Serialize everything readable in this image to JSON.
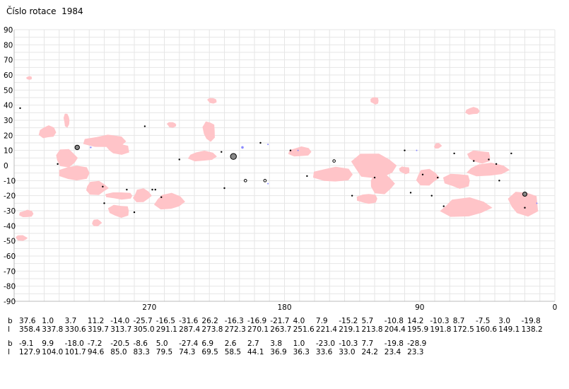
{
  "title": "Číslo rotace  1984",
  "chart_data": {
    "type": "scatter",
    "ylim": [
      -90,
      90
    ],
    "xlim": [
      360,
      0
    ],
    "y_ticks": [
      "90",
      "80",
      "70",
      "60",
      "50",
      "40",
      "30",
      "20",
      "10",
      "0",
      "-10",
      "-20",
      "-30",
      "-40",
      "-50",
      "-60",
      "-70",
      "-80",
      "-90"
    ],
    "x_ticks": [
      {
        "value": 270,
        "label": "270"
      },
      {
        "value": 180,
        "label": "180"
      },
      {
        "value": 90,
        "label": "90"
      },
      {
        "value": 0,
        "label": "0"
      }
    ],
    "grid": true,
    "colors": {
      "region": "#ffc4c8",
      "spot": "#000000",
      "spot_fill": "#888888",
      "small": "#8a8aff",
      "grid": "#e6e6e6"
    },
    "regions": [
      {
        "l": 290,
        "b": 11,
        "w": 19,
        "h": 8
      },
      {
        "l": 338,
        "b": 22,
        "w": 12,
        "h": 10
      },
      {
        "l": 325,
        "b": 30,
        "w": 5,
        "h": 10
      },
      {
        "l": 300,
        "b": 16,
        "w": 30,
        "h": 10
      },
      {
        "l": 325,
        "b": 5,
        "w": 18,
        "h": 13
      },
      {
        "l": 320,
        "b": -5,
        "w": 22,
        "h": 12
      },
      {
        "l": 305,
        "b": -15,
        "w": 18,
        "h": 10
      },
      {
        "l": 290,
        "b": -20,
        "w": 20,
        "h": 6
      },
      {
        "l": 275,
        "b": -20,
        "w": 14,
        "h": 10
      },
      {
        "l": 290,
        "b": -30,
        "w": 16,
        "h": 10
      },
      {
        "l": 257,
        "b": -24,
        "w": 22,
        "h": 12
      },
      {
        "l": 230,
        "b": 23,
        "w": 10,
        "h": 15
      },
      {
        "l": 235,
        "b": 6,
        "w": 20,
        "h": 8
      },
      {
        "l": 228,
        "b": 43,
        "w": 8,
        "h": 4
      },
      {
        "l": 170,
        "b": 9,
        "w": 16,
        "h": 8
      },
      {
        "l": 120,
        "b": 0,
        "w": 38,
        "h": 18
      },
      {
        "l": 148,
        "b": -6,
        "w": 28,
        "h": 12
      },
      {
        "l": 115,
        "b": -12,
        "w": 20,
        "h": 15
      },
      {
        "l": 125,
        "b": -22,
        "w": 15,
        "h": 8
      },
      {
        "l": 85,
        "b": -8,
        "w": 18,
        "h": 12
      },
      {
        "l": 65,
        "b": -10,
        "w": 20,
        "h": 12
      },
      {
        "l": 60,
        "b": -28,
        "w": 38,
        "h": 14
      },
      {
        "l": 50,
        "b": 6,
        "w": 18,
        "h": 10
      },
      {
        "l": 45,
        "b": -3,
        "w": 30,
        "h": 10
      },
      {
        "l": 20,
        "b": -25,
        "w": 25,
        "h": 18
      },
      {
        "l": 55,
        "b": 36,
        "w": 10,
        "h": 6
      },
      {
        "l": 255,
        "b": 27,
        "w": 8,
        "h": 4
      },
      {
        "l": 352,
        "b": -32,
        "w": 10,
        "h": 6
      },
      {
        "l": 355,
        "b": -48,
        "w": 10,
        "h": 4
      },
      {
        "l": 350,
        "b": 58,
        "w": 4,
        "h": 3
      },
      {
        "l": 305,
        "b": -38,
        "w": 8,
        "h": 5
      },
      {
        "l": 120,
        "b": 43,
        "w": 6,
        "h": 6
      },
      {
        "l": 78,
        "b": 13,
        "w": 6,
        "h": 4
      },
      {
        "l": 100,
        "b": -3,
        "w": 8,
        "h": 6
      }
    ],
    "spots": [
      {
        "l": 356,
        "b": 38,
        "r": 1.2,
        "kind": "dot"
      },
      {
        "l": 331,
        "b": 1,
        "r": 1.2,
        "kind": "dot"
      },
      {
        "l": 318,
        "b": 12,
        "r": 3.2,
        "kind": "ring"
      },
      {
        "l": 309,
        "b": 12,
        "r": 1.2,
        "kind": "blue"
      },
      {
        "l": 301,
        "b": -14,
        "r": 1.2,
        "kind": "dot"
      },
      {
        "l": 300,
        "b": -25,
        "r": 1.2,
        "kind": "dot"
      },
      {
        "l": 285,
        "b": -16,
        "r": 1.2,
        "kind": "dot"
      },
      {
        "l": 280,
        "b": -31,
        "r": 1.2,
        "kind": "dot"
      },
      {
        "l": 273,
        "b": 26,
        "r": 1.2,
        "kind": "dot"
      },
      {
        "l": 268,
        "b": -16,
        "r": 1.2,
        "kind": "dot"
      },
      {
        "l": 266,
        "b": -16,
        "r": 1.2,
        "kind": "dot"
      },
      {
        "l": 262,
        "b": -21,
        "r": 1.2,
        "kind": "dot"
      },
      {
        "l": 250,
        "b": 4,
        "r": 1.2,
        "kind": "dot"
      },
      {
        "l": 222,
        "b": 9,
        "r": 1.2,
        "kind": "dot"
      },
      {
        "l": 220,
        "b": -15,
        "r": 1.2,
        "kind": "dot"
      },
      {
        "l": 214,
        "b": 6,
        "r": 4.2,
        "kind": "ring"
      },
      {
        "l": 208,
        "b": 12,
        "r": 1.8,
        "kind": "blue"
      },
      {
        "l": 206,
        "b": -10,
        "r": 1.8,
        "kind": "ringsmall"
      },
      {
        "l": 196,
        "b": 15,
        "r": 1.2,
        "kind": "dot"
      },
      {
        "l": 193,
        "b": -10,
        "r": 1.8,
        "kind": "ringsmall"
      },
      {
        "l": 191,
        "b": 14,
        "r": 1.0,
        "kind": "blue"
      },
      {
        "l": 191,
        "b": -12,
        "r": 1.0,
        "kind": "blue"
      },
      {
        "l": 176,
        "b": 10,
        "r": 1.2,
        "kind": "dot"
      },
      {
        "l": 171,
        "b": 10,
        "r": 1.0,
        "kind": "blue"
      },
      {
        "l": 165,
        "b": -7,
        "r": 1.2,
        "kind": "dot"
      },
      {
        "l": 147,
        "b": 3,
        "r": 1.8,
        "kind": "ringsmall"
      },
      {
        "l": 135,
        "b": -20,
        "r": 1.2,
        "kind": "dot"
      },
      {
        "l": 120,
        "b": -8,
        "r": 1.2,
        "kind": "dot"
      },
      {
        "l": 100,
        "b": 10,
        "r": 1.2,
        "kind": "dot"
      },
      {
        "l": 96,
        "b": -18,
        "r": 1.2,
        "kind": "dot"
      },
      {
        "l": 92,
        "b": 10,
        "r": 1.0,
        "kind": "blue"
      },
      {
        "l": 88,
        "b": -6,
        "r": 1.2,
        "kind": "dot"
      },
      {
        "l": 82,
        "b": -20,
        "r": 1.2,
        "kind": "dot"
      },
      {
        "l": 78,
        "b": -8,
        "r": 1.2,
        "kind": "dot"
      },
      {
        "l": 74,
        "b": -27,
        "r": 1.2,
        "kind": "dot"
      },
      {
        "l": 67,
        "b": 8,
        "r": 1.2,
        "kind": "dot"
      },
      {
        "l": 54,
        "b": 3,
        "r": 1.2,
        "kind": "dot"
      },
      {
        "l": 44,
        "b": 4,
        "r": 1.2,
        "kind": "dot"
      },
      {
        "l": 39,
        "b": 1,
        "r": 1.2,
        "kind": "dot"
      },
      {
        "l": 37,
        "b": -10,
        "r": 1.2,
        "kind": "dot"
      },
      {
        "l": 29,
        "b": 8,
        "r": 1.2,
        "kind": "dot"
      },
      {
        "l": 20,
        "b": -19,
        "r": 3.0,
        "kind": "ring"
      },
      {
        "l": 20,
        "b": -28,
        "r": 1.2,
        "kind": "dot"
      },
      {
        "l": 12,
        "b": -25,
        "r": 1.0,
        "kind": "blue"
      }
    ],
    "table": {
      "row_labels": [
        "b",
        "l"
      ],
      "group1": {
        "b": [
          "37.6",
          "1.0",
          "3.7",
          "11.2",
          "-14.0",
          "-25.7",
          "-16.5",
          "-31.6",
          "26.2",
          "-16.3",
          "-16.9",
          "-21.7",
          "4.0",
          "7.9",
          "-15.2",
          "5.7",
          "-10.8",
          "14.2",
          "-10.3",
          "8.7",
          "-7.5",
          "3.0",
          "-19.8"
        ],
        "l": [
          "358.4",
          "337.8",
          "330.6",
          "319.7",
          "313.7",
          "305.0",
          "291.1",
          "287.4",
          "273.8",
          "272.3",
          "270.1",
          "263.7",
          "251.6",
          "221.4",
          "219.1",
          "213.8",
          "204.4",
          "195.9",
          "191.8",
          "172.5",
          "160.6",
          "149.1",
          "138.2"
        ]
      },
      "group2": {
        "b": [
          "-9.1",
          "9.9",
          "-18.0",
          "-7.2",
          "-20.5",
          "-8.6",
          "5.0",
          "-27.4",
          "6.9",
          "2.6",
          "2.7",
          "3.8",
          "1.0",
          "-23.0",
          "-10.3",
          "7.7",
          "-19.8",
          "-28.9"
        ],
        "l": [
          "127.9",
          "104.0",
          "101.7",
          "94.6",
          "85.0",
          "83.3",
          "79.5",
          "74.3",
          "69.5",
          "58.5",
          "44.1",
          "36.9",
          "36.3",
          "33.6",
          "33.0",
          "24.2",
          "23.4",
          "23.3"
        ]
      }
    }
  }
}
